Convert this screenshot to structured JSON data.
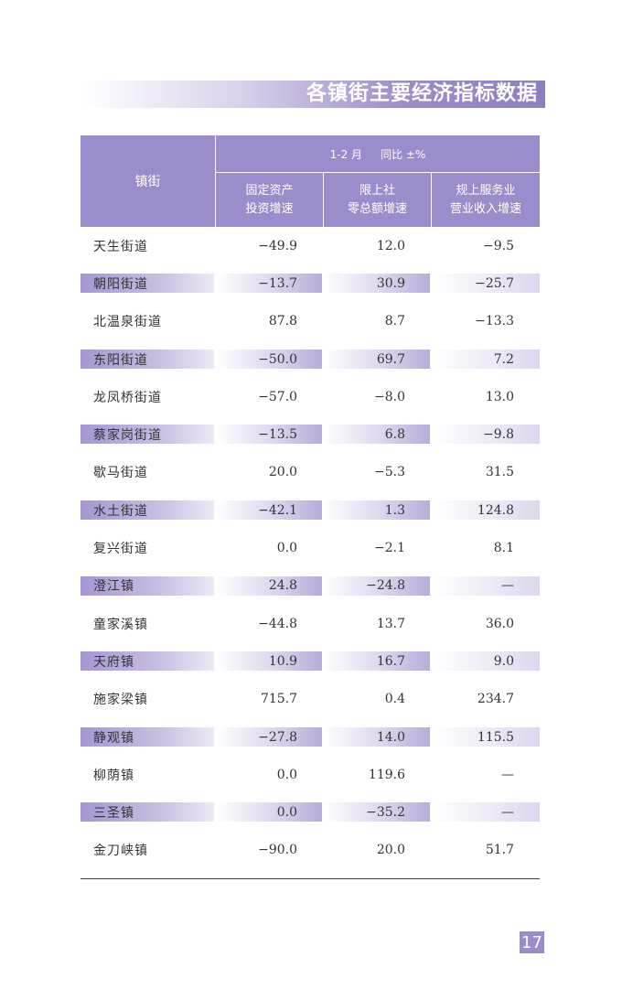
{
  "title": "各镇街主要经济指标数据",
  "header": {
    "town_col": "镇街",
    "period": "1-2 月",
    "comparison": "同比 ±%",
    "columns": [
      "固定资产\n投资增速",
      "限上社\n零总额增速",
      "规上服务业\n营业收入增速"
    ]
  },
  "rows": [
    {
      "name": "天生街道",
      "v1": "−49.9",
      "v2": "12.0",
      "v3": "−9.5"
    },
    {
      "name": "朝阳街道",
      "v1": "−13.7",
      "v2": "30.9",
      "v3": "−25.7"
    },
    {
      "name": "北温泉街道",
      "v1": "87.8",
      "v2": "8.7",
      "v3": "−13.3"
    },
    {
      "name": "东阳街道",
      "v1": "−50.0",
      "v2": "69.7",
      "v3": "7.2"
    },
    {
      "name": "龙凤桥街道",
      "v1": "−57.0",
      "v2": "−8.0",
      "v3": "13.0"
    },
    {
      "name": "蔡家岗街道",
      "v1": "−13.5",
      "v2": "6.8",
      "v3": "−9.8"
    },
    {
      "name": "歇马街道",
      "v1": "20.0",
      "v2": "−5.3",
      "v3": "31.5"
    },
    {
      "name": "水土街道",
      "v1": "−42.1",
      "v2": "1.3",
      "v3": "124.8"
    },
    {
      "name": "复兴街道",
      "v1": "0.0",
      "v2": "−2.1",
      "v3": "8.1"
    },
    {
      "name": "澄江镇",
      "v1": "24.8",
      "v2": "−24.8",
      "v3": "—"
    },
    {
      "name": "童家溪镇",
      "v1": "−44.8",
      "v2": "13.7",
      "v3": "36.0"
    },
    {
      "name": "天府镇",
      "v1": "10.9",
      "v2": "16.7",
      "v3": "9.0"
    },
    {
      "name": "施家梁镇",
      "v1": "715.7",
      "v2": "0.4",
      "v3": "234.7"
    },
    {
      "name": "静观镇",
      "v1": "−27.8",
      "v2": "14.0",
      "v3": "115.5"
    },
    {
      "name": "柳荫镇",
      "v1": "0.0",
      "v2": "119.6",
      "v3": "—"
    },
    {
      "name": "三圣镇",
      "v1": "0.0",
      "v2": "−35.2",
      "v3": "—"
    },
    {
      "name": "金刀峡镇",
      "v1": "−90.0",
      "v2": "20.0",
      "v3": "51.7"
    }
  ],
  "page_number": "17",
  "colors": {
    "accent": "#9b8ccb"
  }
}
